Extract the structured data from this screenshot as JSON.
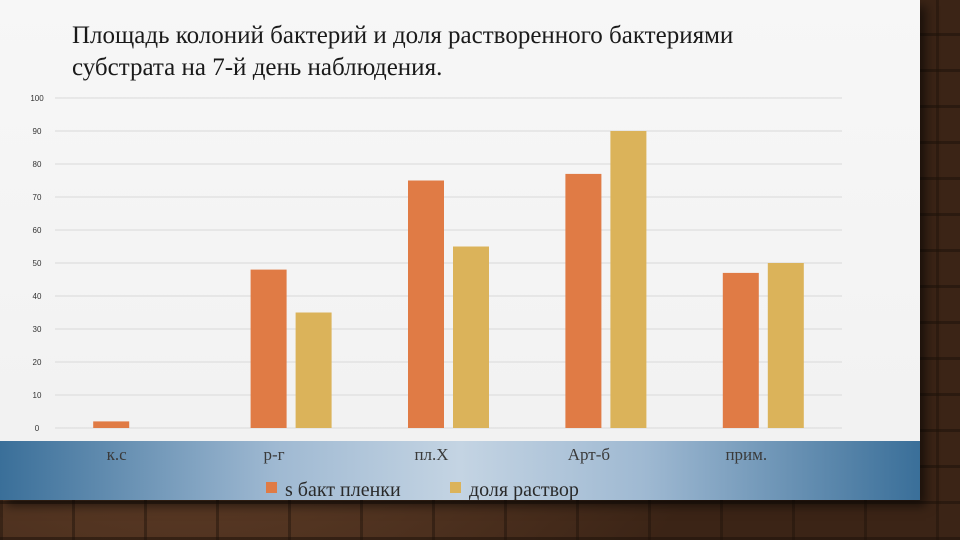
{
  "chart_data": {
    "type": "bar",
    "title": "Площадь колоний бактерий и доля растворенного бактериями субстрата на 7-й день наблюдения.",
    "categories": [
      "к.с",
      "р-г",
      "пл.Х",
      "Арт-б",
      "прим."
    ],
    "series": [
      {
        "name": "s бакт пленки",
        "values": [
          2,
          48,
          75,
          77,
          47
        ],
        "color": "#e07b45"
      },
      {
        "name": "доля раствор",
        "values": [
          0,
          35,
          55,
          90,
          50
        ],
        "color": "#dbb35a"
      }
    ],
    "yticks": [
      "0",
      "10",
      "20",
      "30",
      "40",
      "50",
      "60",
      "70",
      "80",
      "90",
      "100"
    ],
    "ylim": [
      0,
      100
    ],
    "grid": true,
    "legend": "bottom"
  }
}
